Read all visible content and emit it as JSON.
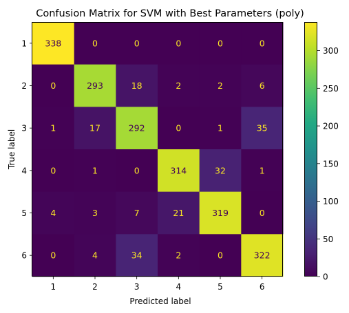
{
  "chart_data": {
    "type": "heatmap",
    "title": "Confusion Matrix for SVM with Best Parameters (poly)",
    "xlabel": "Predicted label",
    "ylabel": "True label",
    "x_tick_labels": [
      "1",
      "2",
      "3",
      "4",
      "5",
      "6"
    ],
    "y_tick_labels": [
      "1",
      "2",
      "3",
      "4",
      "5",
      "6"
    ],
    "matrix": [
      [
        338,
        0,
        0,
        0,
        0,
        0
      ],
      [
        0,
        293,
        18,
        2,
        2,
        6
      ],
      [
        1,
        17,
        292,
        0,
        1,
        35
      ],
      [
        0,
        1,
        0,
        314,
        32,
        1
      ],
      [
        4,
        3,
        7,
        21,
        319,
        0
      ],
      [
        0,
        4,
        34,
        2,
        0,
        322
      ]
    ],
    "colormap": "viridis",
    "color_range": [
      0,
      338
    ],
    "colorbar_ticks": [
      0,
      50,
      100,
      150,
      200,
      250,
      300
    ],
    "colorbar_tick_labels": [
      "0",
      "50",
      "100",
      "150",
      "200",
      "250",
      "300"
    ],
    "grid": false,
    "colors": {
      "low": "#440154",
      "high": "#fde725",
      "text_light": "#fde725",
      "text_dark": "#440154",
      "axis": "#000000",
      "title": "#000000"
    }
  }
}
